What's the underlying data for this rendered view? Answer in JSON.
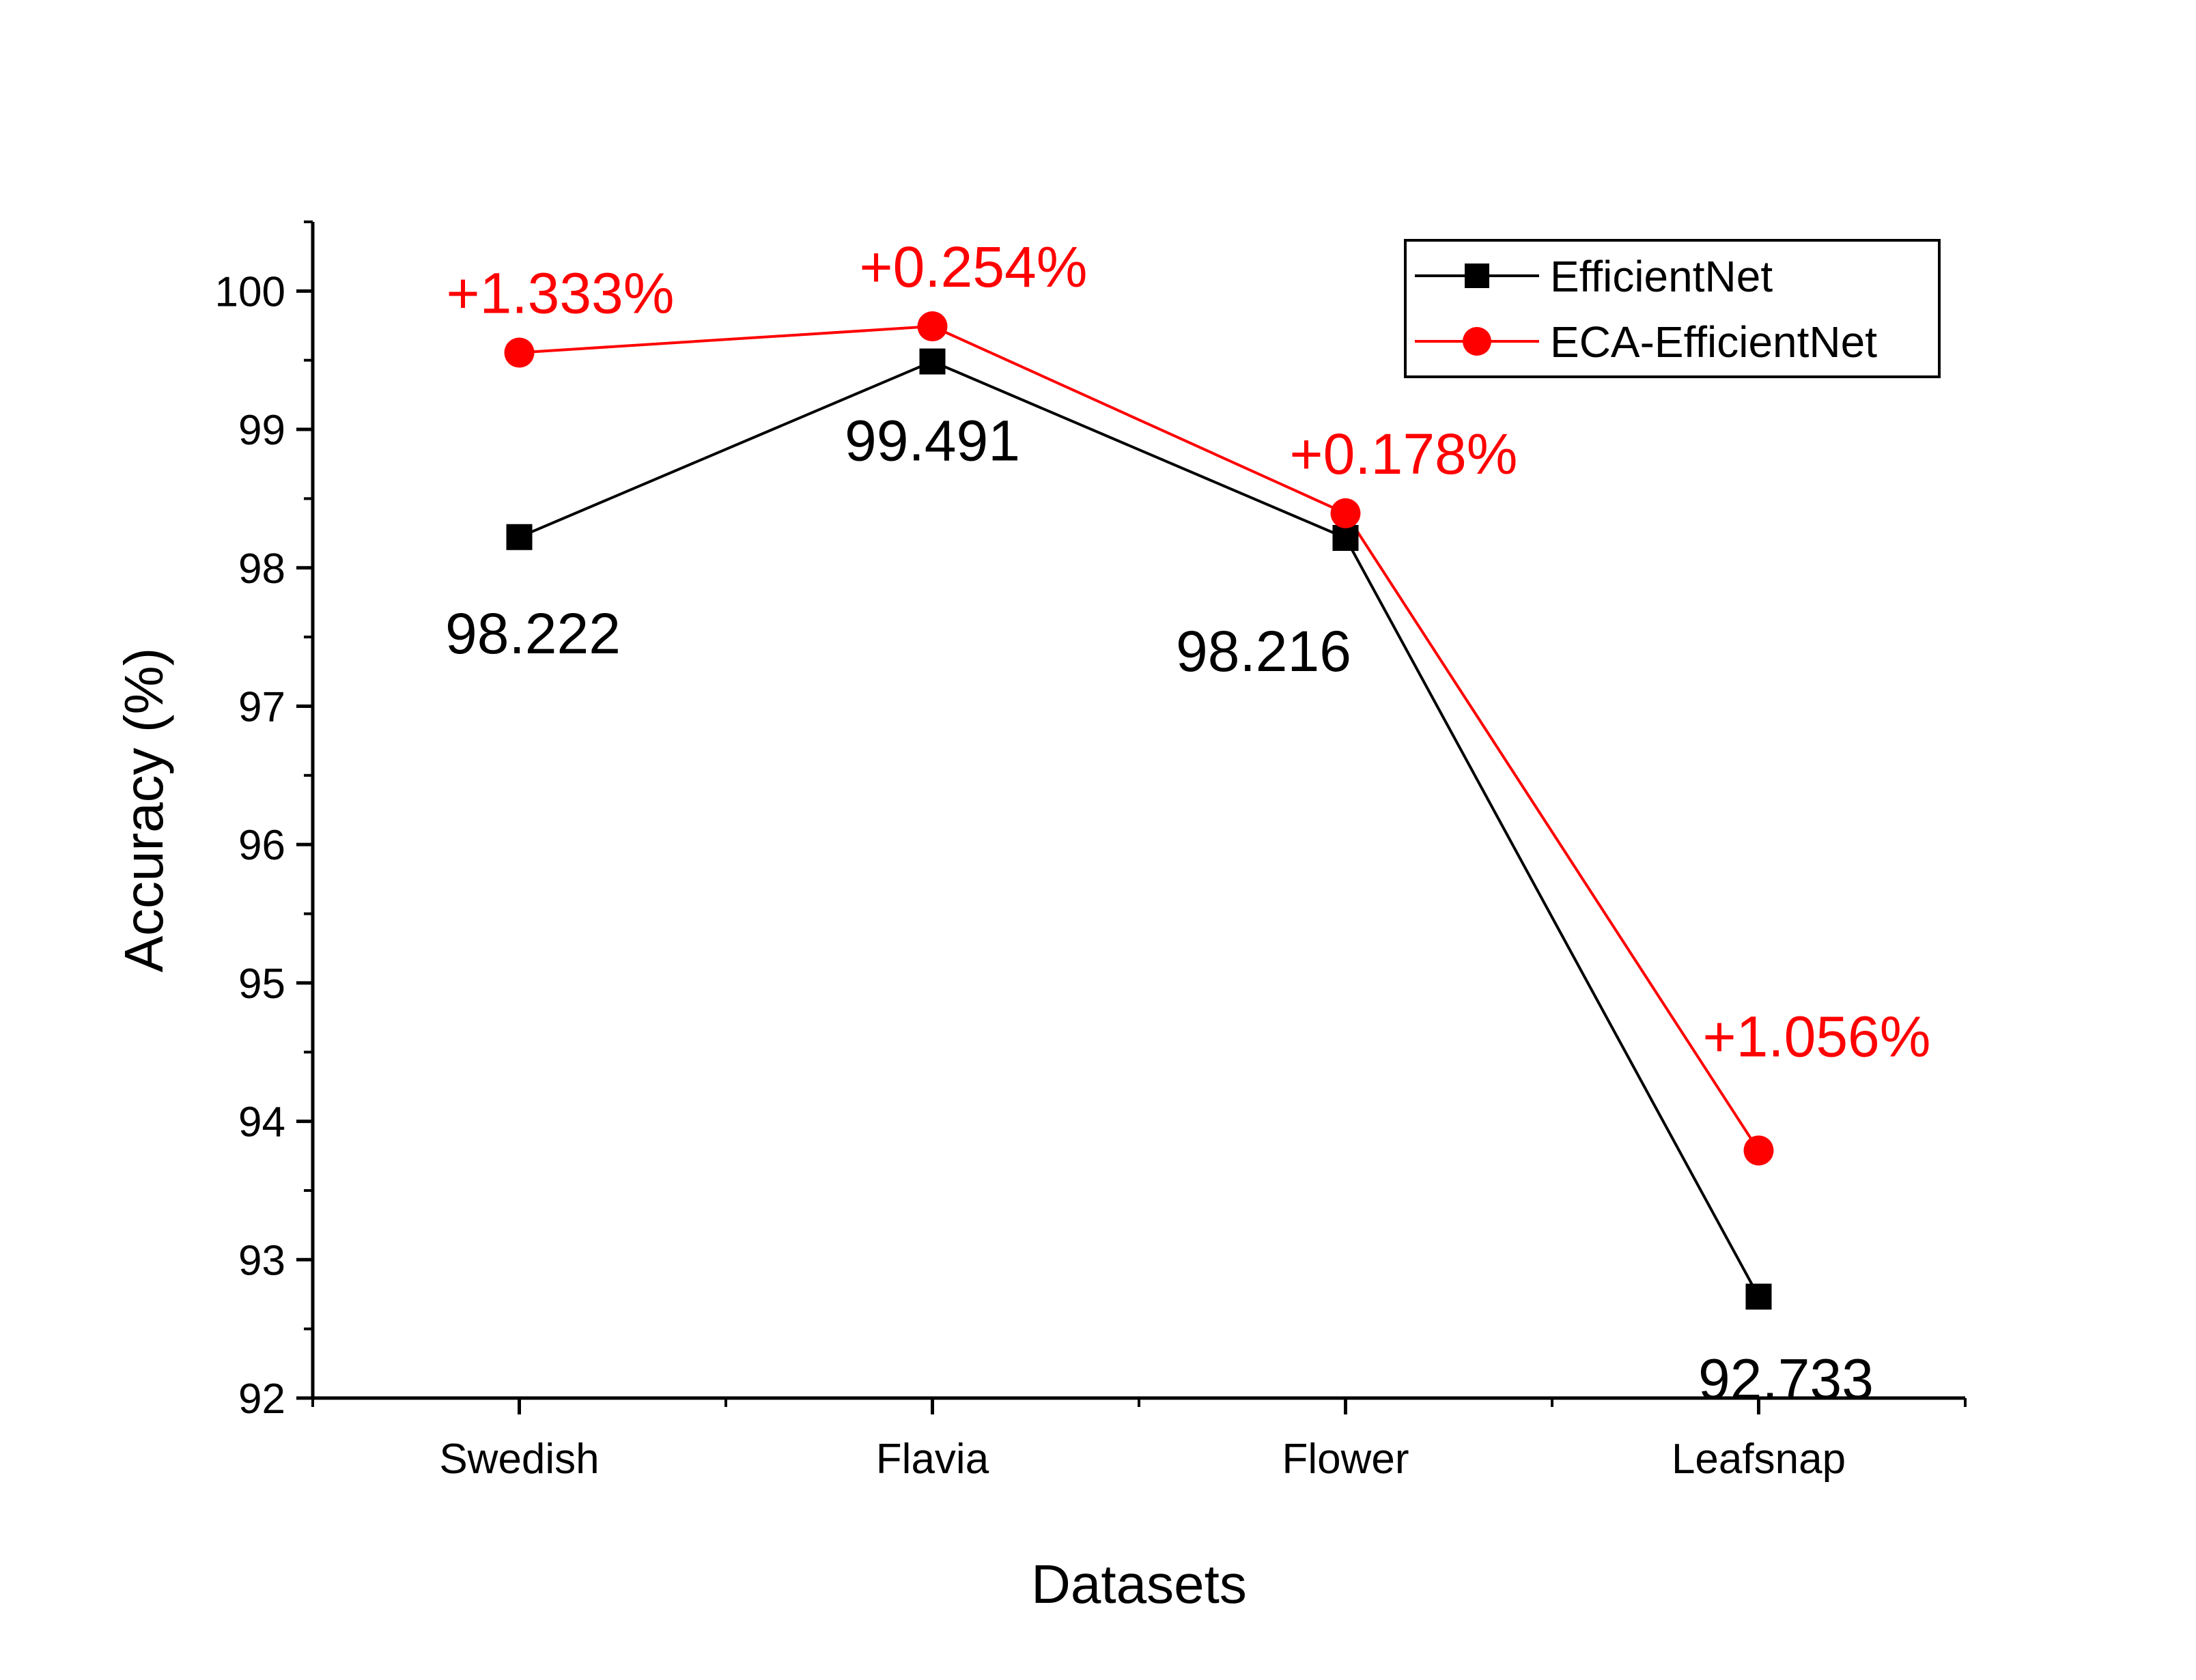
{
  "chart_data": {
    "type": "line",
    "categories": [
      "Swedish",
      "Flavia",
      "Flower",
      "Leafsnap"
    ],
    "series": [
      {
        "name": "EfficientNet",
        "values": [
          98.222,
          99.491,
          98.216,
          92.733
        ],
        "color": "#000000",
        "marker": "square",
        "labels": [
          "98.222",
          "99.491",
          "98.216",
          "92.733"
        ]
      },
      {
        "name": "ECA-EfficientNet",
        "values": [
          99.555,
          99.745,
          98.394,
          93.789
        ],
        "color": "#ff0000",
        "marker": "circle",
        "labels": [
          "+1.333%",
          "+0.254%",
          "+0.178%",
          "+1.056%"
        ]
      }
    ],
    "xlabel": "Datasets",
    "ylabel": "Accuracy (%)",
    "ylim": [
      92,
      100.5
    ],
    "yticks": [
      92,
      93,
      94,
      95,
      96,
      97,
      98,
      99,
      100
    ],
    "grid": false,
    "legend_position": "top-right"
  }
}
